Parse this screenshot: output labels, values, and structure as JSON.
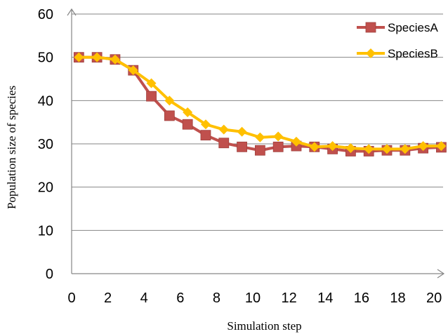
{
  "chart_data": {
    "type": "line",
    "xlabel": "Simulation step",
    "ylabel": "Population size of species",
    "xlim": [
      0,
      20.5
    ],
    "ylim": [
      0,
      60
    ],
    "xticks": [
      "0",
      "2",
      "4",
      "6",
      "8",
      "10",
      "12",
      "14",
      "16",
      "18",
      "20"
    ],
    "yticks": [
      "0",
      "10",
      "20",
      "30",
      "40",
      "50",
      "60"
    ],
    "grid": "horizontal",
    "legend_position": "top-right",
    "x": [
      0.4,
      1.4,
      2.4,
      3.4,
      4.4,
      5.4,
      6.4,
      7.4,
      8.4,
      9.4,
      10.4,
      11.4,
      12.4,
      13.4,
      14.4,
      15.4,
      16.4,
      17.4,
      18.4,
      19.4,
      20.4
    ],
    "series": [
      {
        "name": "SpeciesA",
        "color": "#c0504d",
        "marker": "square",
        "values": [
          50,
          50,
          49.5,
          47,
          41,
          36.5,
          34.5,
          32,
          30.2,
          29.3,
          28.5,
          29.3,
          29.5,
          29.3,
          28.8,
          28.3,
          28.3,
          28.5,
          28.5,
          29,
          29.2
        ]
      },
      {
        "name": "SpeciesB",
        "color": "#ffc000",
        "marker": "diamond",
        "values": [
          50,
          50,
          49.5,
          47,
          44,
          40,
          37.3,
          34.5,
          33.3,
          32.8,
          31.5,
          31.7,
          30.5,
          29.3,
          29.5,
          29,
          28.8,
          28.8,
          28.8,
          29.5,
          29.5
        ]
      }
    ]
  }
}
